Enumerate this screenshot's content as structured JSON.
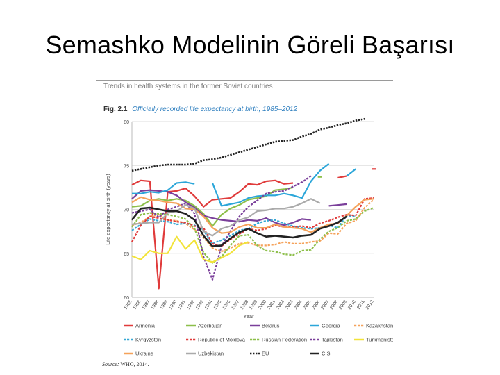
{
  "slide": {
    "title": "Semashko Modelinin Göreli Başarısı"
  },
  "figure": {
    "header": "Trends in health systems in the former Soviet countries",
    "fig_label": "Fig. 2.1",
    "fig_title": "Officially recorded life expectancy at birth, 1985–2012",
    "source_label": "Source:",
    "source_text": "WHO, 2014."
  },
  "chart_data": {
    "type": "line",
    "xlabel": "Year",
    "ylabel": "Life expectancy at birth (years)",
    "ylim": [
      60,
      80
    ],
    "yticks": [
      60,
      65,
      70,
      75,
      80
    ],
    "x": [
      1985,
      1986,
      1987,
      1988,
      1989,
      1990,
      1991,
      1992,
      1993,
      1994,
      1995,
      1996,
      1997,
      1998,
      1999,
      2000,
      2001,
      2002,
      2003,
      2004,
      2005,
      2006,
      2007,
      2008,
      2009,
      2010,
      2011,
      2012
    ],
    "grid": "horizontal",
    "legend_position": "bottom",
    "series": [
      {
        "name": "Armenia",
        "color": "#e03b3b",
        "dash": "solid",
        "values": [
          72.8,
          73.3,
          73.2,
          61,
          72,
          72.1,
          72.4,
          71.5,
          70.3,
          71.1,
          71.2,
          71.3,
          72,
          72.9,
          72.8,
          73.2,
          73.3,
          72.9,
          73,
          null,
          null,
          null,
          null,
          73.6,
          73.8,
          null,
          null,
          74.6
        ]
      },
      {
        "name": "Azerbaijan",
        "color": "#8dbf4a",
        "dash": "solid",
        "values": [
          70.3,
          70.4,
          71,
          71.2,
          71,
          71.2,
          71,
          70.4,
          69.5,
          68.1,
          69.4,
          70.1,
          70.5,
          71.1,
          71.3,
          71.5,
          72.2,
          72.3,
          72.5,
          null,
          null,
          73.7,
          null,
          null,
          null,
          null,
          null,
          null
        ]
      },
      {
        "name": "Belarus",
        "color": "#7a3f9a",
        "dash": "solid",
        "values": [
          71.2,
          72.1,
          72.2,
          72.1,
          72,
          71.6,
          70.8,
          70.2,
          69.3,
          69,
          68.8,
          68.7,
          68.6,
          68.8,
          68.7,
          69,
          68.5,
          68.2,
          68.5,
          68.9,
          68.8,
          null,
          70.4,
          70.5,
          70.6,
          null,
          null,
          null
        ]
      },
      {
        "name": "Georgia",
        "color": "#2ba6d9",
        "dash": "solid",
        "values": [
          71.8,
          71.8,
          72,
          71.9,
          72.2,
          73,
          73.1,
          72.9,
          null,
          73,
          70.4,
          70.6,
          70.8,
          71.3,
          71.5,
          71.6,
          71.6,
          71.8,
          71.6,
          71.3,
          73.2,
          74.4,
          75.2,
          null,
          73.8,
          74.6,
          null,
          null
        ]
      },
      {
        "name": "Kazakhstan",
        "color": "#f5a25a",
        "dash": "dashed",
        "values": [
          68.2,
          68.5,
          69.2,
          69.4,
          68.8,
          68.7,
          68.4,
          67.7,
          66.8,
          65.6,
          65.2,
          65.6,
          66.1,
          66.2,
          65.9,
          65.9,
          66,
          66.3,
          66.1,
          66.1,
          66.3,
          66.4,
          67.3,
          67.2,
          68.4,
          68.7,
          70.2,
          71.1
        ]
      },
      {
        "name": "Kyrgyzstan",
        "color": "#35a8d4",
        "dash": "dashed",
        "values": [
          67.6,
          68.3,
          68.9,
          68.7,
          68.6,
          68.3,
          68.4,
          68.2,
          67.6,
          66.1,
          66.5,
          67,
          67.6,
          67.8,
          68.4,
          68.7,
          68.8,
          68.4,
          68.1,
          67.9,
          67.8,
          67.9,
          68.2,
          67.9,
          69.3,
          69.2,
          null,
          null
        ]
      },
      {
        "name": "Republic of Moldova",
        "color": "#e03b3b",
        "dash": "dashed",
        "values": [
          66.3,
          68.2,
          69.2,
          69,
          68.8,
          68.6,
          68.5,
          68.1,
          67.9,
          66.1,
          65.8,
          66.6,
          67.2,
          67.8,
          67.6,
          67.8,
          68.2,
          68,
          68,
          68.1,
          67.9,
          68.4,
          68.7,
          69.1,
          69.4,
          69.3,
          71.2,
          71.3
        ]
      },
      {
        "name": "Russian Federation",
        "color": "#8dbf4a",
        "dash": "dashed",
        "values": [
          68,
          69.4,
          69.6,
          69.5,
          69.4,
          69.2,
          68.9,
          67.8,
          65.1,
          63.9,
          64.6,
          65.9,
          67,
          67.1,
          65.9,
          65.3,
          65.2,
          64.9,
          64.8,
          65.3,
          65.4,
          66.6,
          67.5,
          67.9,
          68.7,
          68.9,
          69.8,
          70.2
        ]
      },
      {
        "name": "Tajikistan",
        "color": "#7a3f9a",
        "dash": "dashed",
        "values": [
          69.6,
          69.8,
          70,
          69.1,
          70,
          70.3,
          70.7,
          69.5,
          64.6,
          62,
          65.8,
          67.5,
          69.2,
          70.3,
          71,
          71.8,
          72,
          72.1,
          72.6,
          73.1,
          73.8,
          null,
          null,
          null,
          null,
          null,
          null,
          null
        ]
      },
      {
        "name": "Turkmenistan",
        "color": "#f2e33a",
        "dash": "solid",
        "values": [
          64.7,
          64.3,
          65.3,
          65,
          65,
          66.9,
          65.5,
          66.5,
          64.3,
          64,
          64.5,
          65,
          65.9,
          66.3,
          null,
          null,
          null,
          null,
          null,
          null,
          null,
          null,
          null,
          null,
          null,
          null,
          null,
          null
        ]
      },
      {
        "name": "Ukraine",
        "color": "#f5a25a",
        "dash": "solid",
        "values": [
          70.8,
          71.4,
          71.1,
          71,
          70.8,
          70.7,
          70.1,
          70,
          69.2,
          67.9,
          67.3,
          67.4,
          68,
          68.3,
          67.9,
          67.9,
          68.3,
          68,
          67.9,
          67.8,
          67.4,
          67.9,
          68.3,
          68.4,
          69.3,
          70.3,
          71.1,
          71.2
        ]
      },
      {
        "name": "Uzbekistan",
        "color": "#aaaaaa",
        "dash": "solid",
        "values": [
          68.3,
          68.4,
          68.5,
          68.5,
          69.6,
          69.8,
          70.5,
          70.1,
          67.5,
          67,
          67.8,
          68.1,
          68.8,
          69.1,
          69.8,
          69.9,
          70.1,
          70.1,
          70.3,
          70.7,
          71.2,
          70.7,
          null,
          null,
          null,
          null,
          null,
          null
        ]
      },
      {
        "name": "EU",
        "color": "#222222",
        "dash": "dotted",
        "values": [
          74.4,
          74.6,
          74.8,
          75,
          75.1,
          75.1,
          75.1,
          75.2,
          75.6,
          75.7,
          75.9,
          76.2,
          76.5,
          76.8,
          77.1,
          77.4,
          77.7,
          77.8,
          77.9,
          78.3,
          78.6,
          79.1,
          79.3,
          79.6,
          79.8,
          80.1,
          80.3,
          null
        ]
      },
      {
        "name": "CIS",
        "color": "#222222",
        "dash": "solid",
        "values": [
          68.8,
          70.1,
          70.2,
          70,
          69.8,
          69.8,
          69.5,
          68.8,
          67,
          65.8,
          65.9,
          66.7,
          67.4,
          67.8,
          67.3,
          66.9,
          67,
          66.9,
          66.8,
          67,
          67.1,
          67.8,
          68.1,
          68.5,
          69.2,
          null,
          null,
          null
        ]
      }
    ]
  }
}
